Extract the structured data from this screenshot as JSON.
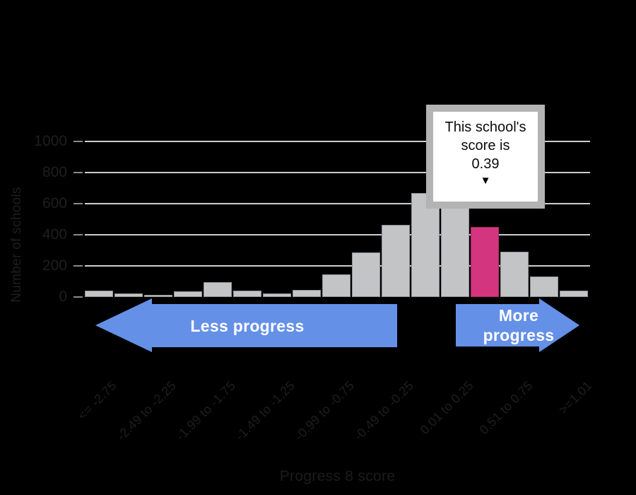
{
  "chart_data": {
    "type": "bar",
    "title": "",
    "xlabel": "Progress 8 score",
    "ylabel": "Number of schools",
    "ylim": [
      0,
      1000
    ],
    "yticks": [
      0,
      200,
      400,
      600,
      800,
      1000
    ],
    "grid": "horizontal",
    "x_tick_labels": [
      "<= -2.75",
      "-2.49 to -2.25",
      "-1.99 to -1.75",
      "-1.49 to -1.25",
      "-0.99 to -0.75",
      "-0.49 to -0.25",
      "0.01 to 0.25",
      "0.51 to 0.75",
      ">=1.01"
    ],
    "x_tick_every": 2,
    "values": [
      40,
      25,
      15,
      35,
      95,
      40,
      25,
      45,
      145,
      285,
      465,
      670,
      620,
      450,
      290,
      130,
      40
    ],
    "highlight_index": 13,
    "colors": {
      "background": "#000000",
      "bar_fill": "#c3c4c6",
      "bar_border": "#909295",
      "highlight_fill": "#d4357f",
      "highlight_border": "#a82a64",
      "gridline": "#cdcdcd",
      "tick": "#8a8a8a",
      "axis_text": "#1e1e1e",
      "arrow_fill": "#6590e7",
      "arrow_text": "#ffffff",
      "callout_border": "#b3b3b3",
      "callout_bg": "#ffffff",
      "callout_text": "#0b0c0c"
    }
  },
  "callout": {
    "lines": [
      "This school's",
      "score is",
      "0.39"
    ],
    "pointer": "▼"
  },
  "annotations": {
    "less_progress": "Less progress",
    "more_progress": [
      "More",
      "progress"
    ]
  }
}
